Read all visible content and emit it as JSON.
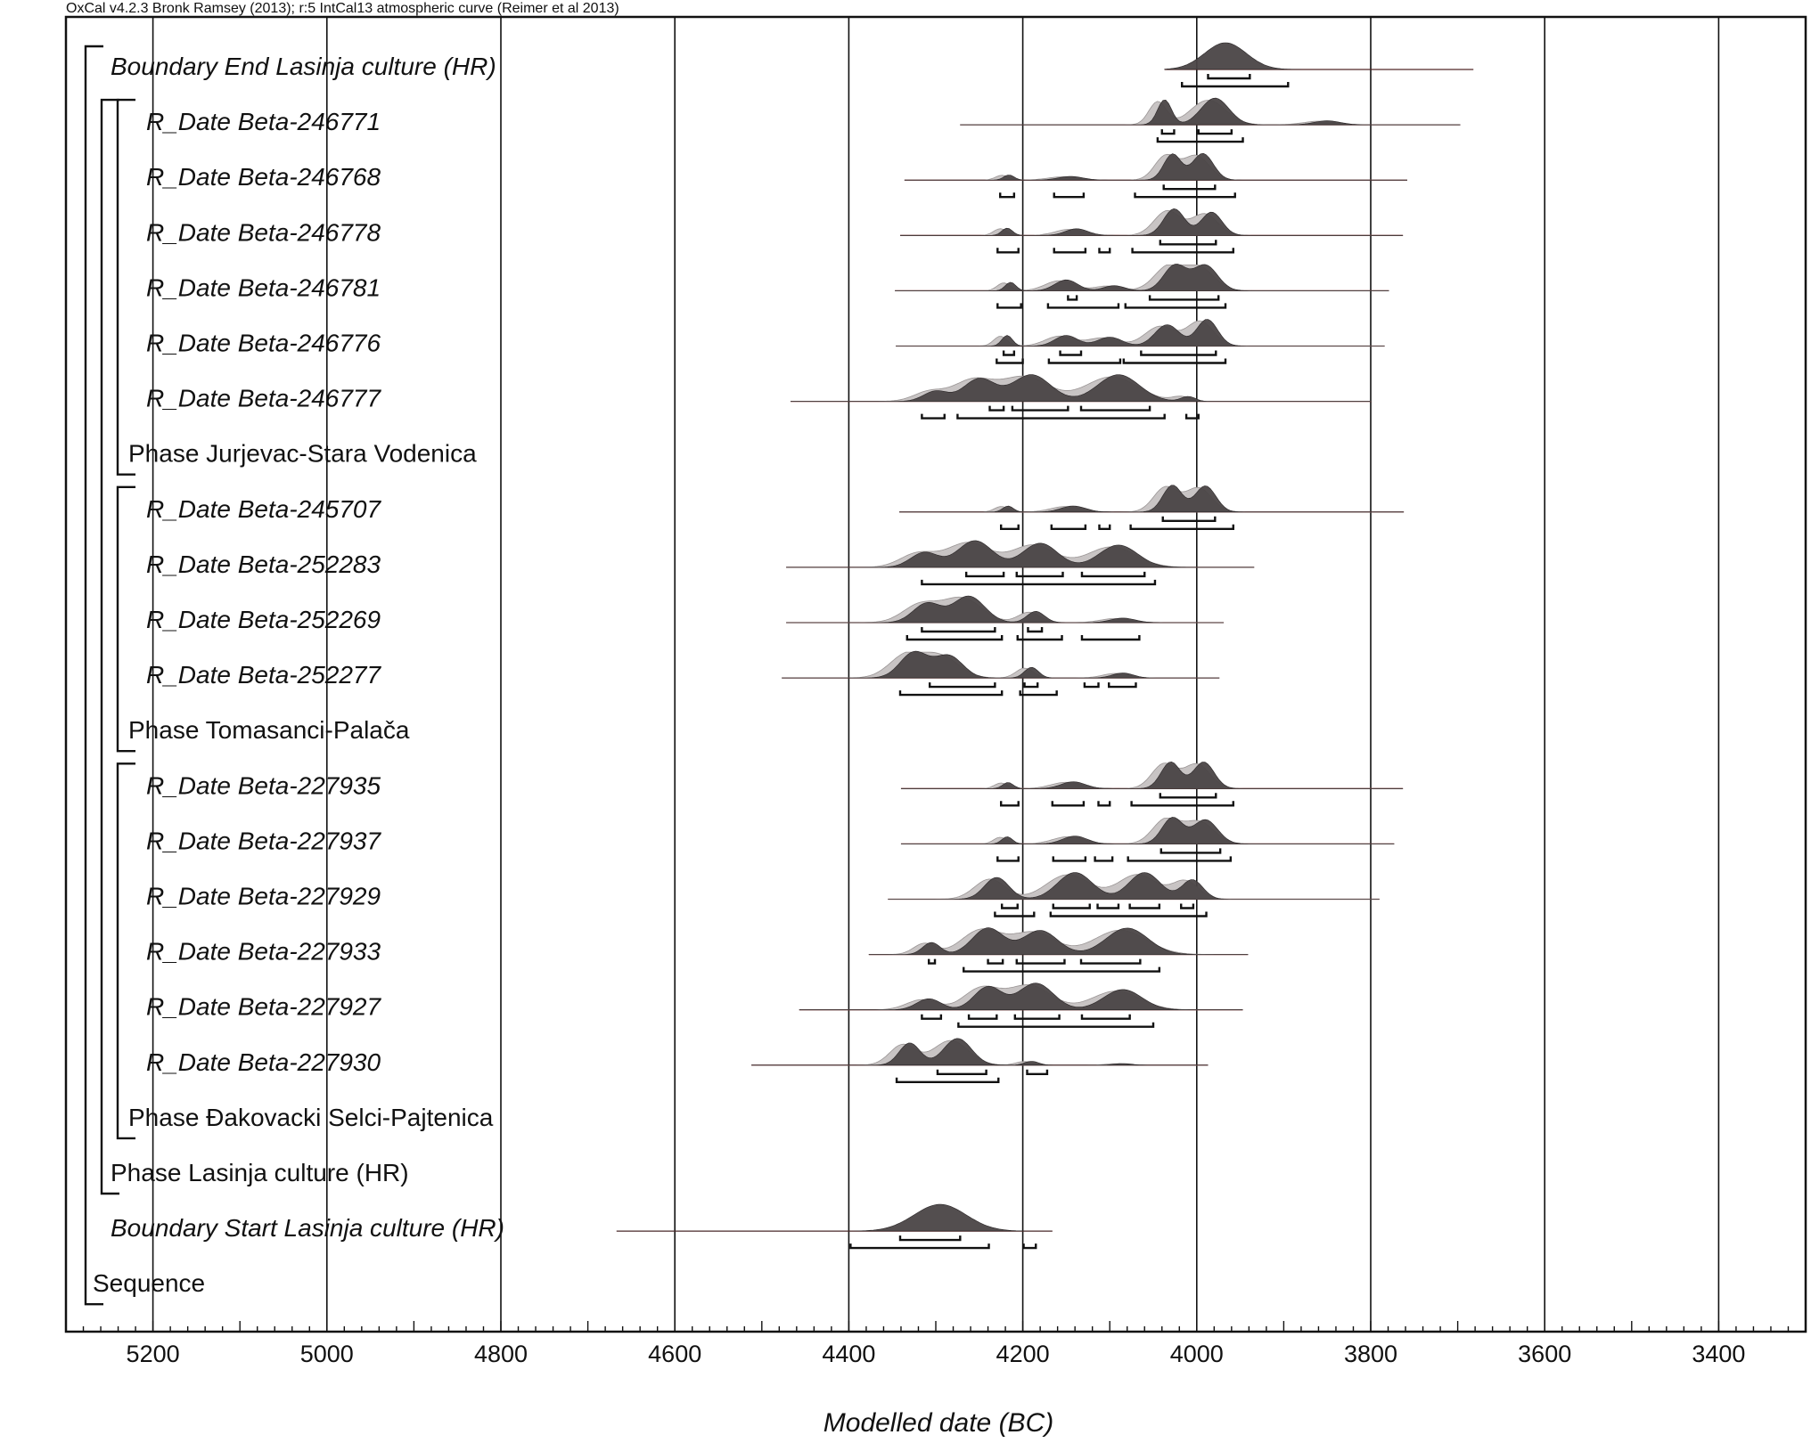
{
  "header": {
    "text": "OxCal v4.2.3 Bronk Ramsey (2013); r:5 IntCal13 atmospheric curve (Reimer et al 2013)"
  },
  "chart_data": {
    "type": "ridgeline",
    "xlabel": "Modelled date (BC)",
    "xlim": [
      5300,
      3300
    ],
    "x_ticks": [
      5200,
      5000,
      4800,
      4600,
      4400,
      4200,
      4000,
      3800,
      3600,
      3400
    ],
    "grid": true,
    "rows": [
      {
        "label": "Boundary End Lasinja culture (HR)",
        "italic": true,
        "kind": "boundary",
        "range": [
          4037,
          3682
        ],
        "peaks": [
          [
            3967,
            24,
            1.0
          ]
        ],
        "hpd68": [
          [
            3987,
            3939
          ]
        ],
        "hpd95": [
          [
            4017,
            3895
          ]
        ]
      },
      {
        "label": "R_Date Beta-246771",
        "italic": true,
        "kind": "date",
        "range": [
          4272,
          3697
        ],
        "peaks": [
          [
            4037,
            8,
            0.75
          ],
          [
            3979,
            16,
            0.8
          ],
          [
            3850,
            15,
            0.12
          ]
        ],
        "hpd68": [
          [
            4040,
            4026
          ],
          [
            3998,
            3960
          ]
        ],
        "hpd95": [
          [
            4045,
            3947
          ]
        ]
      },
      {
        "label": "R_Date Beta-246768",
        "italic": true,
        "kind": "date",
        "range": [
          4336,
          3758
        ],
        "peaks": [
          [
            4216,
            6,
            0.14
          ],
          [
            4145,
            14,
            0.1
          ],
          [
            4028,
            10,
            0.7
          ],
          [
            3993,
            12,
            0.72
          ]
        ],
        "hpd68": [
          [
            4038,
            3979
          ]
        ],
        "hpd95": [
          [
            4226,
            4210
          ],
          [
            4164,
            4130
          ],
          [
            4071,
            3956
          ]
        ]
      },
      {
        "label": "R_Date Beta-246778",
        "italic": true,
        "kind": "date",
        "range": [
          4341,
          3763
        ],
        "peaks": [
          [
            4218,
            6,
            0.22
          ],
          [
            4138,
            13,
            0.2
          ],
          [
            4026,
            12,
            0.8
          ],
          [
            3983,
            12,
            0.7
          ]
        ],
        "hpd68": [
          [
            4042,
            3978
          ]
        ],
        "hpd95": [
          [
            4229,
            4205
          ],
          [
            4164,
            4128
          ],
          [
            4112,
            4100
          ],
          [
            4074,
            3958
          ]
        ]
      },
      {
        "label": "R_Date Beta-246781",
        "italic": true,
        "kind": "date",
        "range": [
          4347,
          3779
        ],
        "peaks": [
          [
            4214,
            6,
            0.25
          ],
          [
            4150,
            13,
            0.32
          ],
          [
            4095,
            12,
            0.15
          ],
          [
            4025,
            13,
            0.75
          ],
          [
            3990,
            14,
            0.75
          ]
        ],
        "hpd68": [
          [
            4148,
            4138
          ],
          [
            4054,
            3975
          ]
        ],
        "hpd95": [
          [
            4229,
            4202
          ],
          [
            4171,
            4090
          ],
          [
            4082,
            3967
          ]
        ]
      },
      {
        "label": "R_Date Beta-246776",
        "italic": true,
        "kind": "date",
        "range": [
          4346,
          3784
        ],
        "peaks": [
          [
            4218,
            6,
            0.3
          ],
          [
            4150,
            13,
            0.3
          ],
          [
            4100,
            14,
            0.25
          ],
          [
            4034,
            14,
            0.6
          ],
          [
            3988,
            12,
            0.75
          ]
        ],
        "hpd68": [
          [
            4222,
            4210
          ],
          [
            4157,
            4133
          ],
          [
            4064,
            3978
          ]
        ],
        "hpd95": [
          [
            4230,
            4200
          ],
          [
            4170,
            4088
          ],
          [
            4084,
            3967
          ]
        ]
      },
      {
        "label": "R_Date Beta-246777",
        "italic": true,
        "kind": "date",
        "range": [
          4467,
          3799
        ],
        "peaks": [
          [
            4300,
            14,
            0.25
          ],
          [
            4250,
            18,
            0.55
          ],
          [
            4190,
            22,
            0.65
          ],
          [
            4090,
            24,
            0.65
          ],
          [
            4010,
            8,
            0.12
          ]
        ],
        "hpd68": [
          [
            4238,
            4222
          ],
          [
            4212,
            4148
          ],
          [
            4133,
            4054
          ]
        ],
        "hpd95": [
          [
            4316,
            4290
          ],
          [
            4275,
            4037
          ],
          [
            4012,
            3998
          ]
        ]
      },
      {
        "label": "Phase Jurjevac-Stara Vodenica",
        "italic": false,
        "kind": "phase"
      },
      {
        "label": "R_Date Beta-245707",
        "italic": true,
        "kind": "date",
        "range": [
          4342,
          3762
        ],
        "peaks": [
          [
            4217,
            6,
            0.18
          ],
          [
            4142,
            14,
            0.18
          ],
          [
            4028,
            11,
            0.8
          ],
          [
            3990,
            12,
            0.78
          ]
        ],
        "hpd68": [
          [
            4039,
            3979
          ]
        ],
        "hpd95": [
          [
            4225,
            4205
          ],
          [
            4167,
            4128
          ],
          [
            4112,
            4100
          ],
          [
            4076,
            3958
          ]
        ]
      },
      {
        "label": "R_Date Beta-252283",
        "italic": true,
        "kind": "date",
        "range": [
          4472,
          3934
        ],
        "peaks": [
          [
            4313,
            16,
            0.4
          ],
          [
            4255,
            20,
            0.72
          ],
          [
            4180,
            20,
            0.65
          ],
          [
            4090,
            22,
            0.6
          ]
        ],
        "hpd68": [
          [
            4265,
            4222
          ],
          [
            4207,
            4154
          ],
          [
            4132,
            4060
          ]
        ],
        "hpd95": [
          [
            4316,
            4048
          ]
        ]
      },
      {
        "label": "R_Date Beta-252269",
        "italic": true,
        "kind": "date",
        "range": [
          4472,
          3969
        ],
        "peaks": [
          [
            4310,
            16,
            0.6
          ],
          [
            4262,
            18,
            0.82
          ],
          [
            4185,
            10,
            0.35
          ],
          [
            4085,
            14,
            0.14
          ]
        ],
        "hpd68": [
          [
            4316,
            4232
          ],
          [
            4194,
            4178
          ]
        ],
        "hpd95": [
          [
            4333,
            4224
          ],
          [
            4206,
            4155
          ],
          [
            4132,
            4066
          ]
        ]
      },
      {
        "label": "R_Date Beta-252277",
        "italic": true,
        "kind": "date",
        "range": [
          4477,
          3974
        ],
        "peaks": [
          [
            4325,
            16,
            0.72
          ],
          [
            4285,
            16,
            0.62
          ],
          [
            4190,
            8,
            0.3
          ],
          [
            4085,
            12,
            0.14
          ]
        ],
        "hpd68": [
          [
            4307,
            4232
          ],
          [
            4198,
            4183
          ],
          [
            4129,
            4113
          ],
          [
            4101,
            4070
          ]
        ],
        "hpd95": [
          [
            4341,
            4224
          ],
          [
            4203,
            4161
          ]
        ]
      },
      {
        "label": "Phase Tomasanci-Palača",
        "italic": false,
        "kind": "phase"
      },
      {
        "label": "R_Date Beta-227935",
        "italic": true,
        "kind": "date",
        "range": [
          4340,
          3763
        ],
        "peaks": [
          [
            4217,
            6,
            0.18
          ],
          [
            4142,
            14,
            0.2
          ],
          [
            4030,
            11,
            0.78
          ],
          [
            3992,
            12,
            0.78
          ]
        ],
        "hpd68": [
          [
            4042,
            3978
          ]
        ],
        "hpd95": [
          [
            4225,
            4205
          ],
          [
            4166,
            4130
          ],
          [
            4113,
            4100
          ],
          [
            4075,
            3958
          ]
        ]
      },
      {
        "label": "R_Date Beta-227937",
        "italic": true,
        "kind": "date",
        "range": [
          4340,
          3773
        ],
        "peaks": [
          [
            4218,
            6,
            0.22
          ],
          [
            4140,
            14,
            0.24
          ],
          [
            4028,
            12,
            0.8
          ],
          [
            3990,
            14,
            0.74
          ]
        ],
        "hpd68": [
          [
            4041,
            3973
          ]
        ],
        "hpd95": [
          [
            4229,
            4205
          ],
          [
            4165,
            4128
          ],
          [
            4117,
            4097
          ],
          [
            4079,
            3961
          ]
        ]
      },
      {
        "label": "R_Date Beta-227929",
        "italic": true,
        "kind": "date",
        "range": [
          4355,
          3790
        ],
        "peaks": [
          [
            4230,
            14,
            0.45
          ],
          [
            4140,
            20,
            0.55
          ],
          [
            4060,
            18,
            0.55
          ],
          [
            4005,
            12,
            0.4
          ]
        ],
        "hpd68": [
          [
            4224,
            4206
          ],
          [
            4165,
            4123
          ],
          [
            4114,
            4090
          ],
          [
            4077,
            4043
          ],
          [
            4018,
            4004
          ]
        ],
        "hpd95": [
          [
            4232,
            4187
          ],
          [
            4168,
            3989
          ]
        ]
      },
      {
        "label": "R_Date Beta-227933",
        "italic": true,
        "kind": "date",
        "range": [
          4377,
          3941
        ],
        "peaks": [
          [
            4305,
            10,
            0.25
          ],
          [
            4240,
            18,
            0.55
          ],
          [
            4180,
            20,
            0.5
          ],
          [
            4080,
            24,
            0.55
          ]
        ],
        "hpd68": [
          [
            4308,
            4301
          ],
          [
            4240,
            4223
          ],
          [
            4207,
            4152
          ],
          [
            4133,
            4065
          ]
        ],
        "hpd95": [
          [
            4268,
            4043
          ]
        ]
      },
      {
        "label": "R_Date Beta-227927",
        "italic": true,
        "kind": "date",
        "range": [
          4457,
          3947
        ],
        "peaks": [
          [
            4308,
            14,
            0.3
          ],
          [
            4240,
            16,
            0.62
          ],
          [
            4185,
            20,
            0.72
          ],
          [
            4085,
            22,
            0.55
          ]
        ],
        "hpd68": [
          [
            4316,
            4294
          ],
          [
            4262,
            4230
          ],
          [
            4209,
            4158
          ],
          [
            4132,
            4077
          ]
        ],
        "hpd95": [
          [
            4274,
            4050
          ]
        ]
      },
      {
        "label": "R_Date Beta-227930",
        "italic": true,
        "kind": "date",
        "range": [
          4512,
          3987
        ],
        "peaks": [
          [
            4330,
            12,
            0.68
          ],
          [
            4275,
            16,
            0.82
          ],
          [
            4190,
            8,
            0.12
          ],
          [
            4085,
            10,
            0.05
          ]
        ],
        "hpd68": [
          [
            4298,
            4242
          ],
          [
            4195,
            4172
          ]
        ],
        "hpd95": [
          [
            4345,
            4228
          ]
        ]
      },
      {
        "label": "Phase Đakovacki Selci-Pajtenica",
        "italic": false,
        "kind": "phase"
      },
      {
        "label": "Phase Lasinja culture (HR)",
        "italic": false,
        "kind": "phase"
      },
      {
        "label": "Boundary Start Lasinja culture (HR)",
        "italic": true,
        "kind": "boundary",
        "range": [
          4667,
          4166
        ],
        "peaks": [
          [
            4295,
            30,
            1.0
          ]
        ],
        "hpd68": [
          [
            4341,
            4272
          ]
        ],
        "hpd95": [
          [
            4398,
            4239
          ],
          [
            4199,
            4185
          ]
        ]
      },
      {
        "label": "Sequence",
        "italic": false,
        "kind": "sequence"
      }
    ],
    "colors": {
      "posterior": "#4a4546",
      "likelihood": "#c8c4c4",
      "range_line": "#6b2a2a",
      "grid": "#111111",
      "frame": "#111111"
    }
  }
}
